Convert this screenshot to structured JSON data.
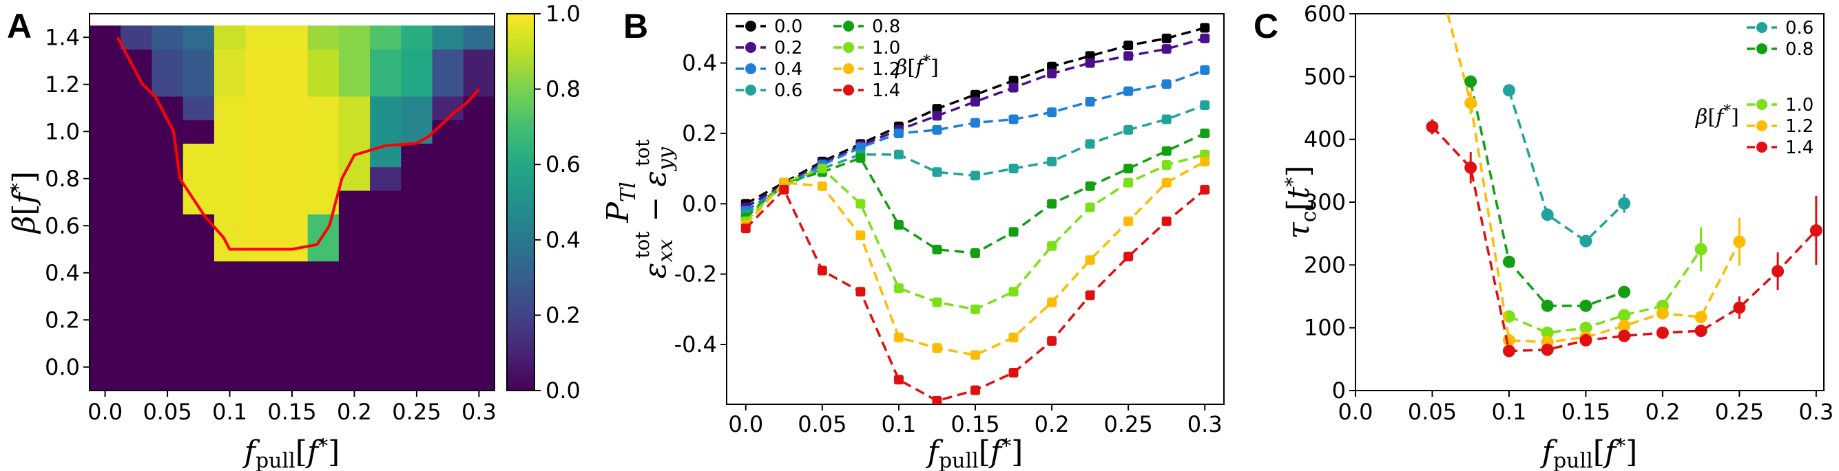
{
  "chart_data": [
    {
      "panel": "A",
      "type": "heatmap",
      "xlabel": "f_pull[f*]",
      "ylabel": "β[f*]",
      "x_ticks": [
        "0.0",
        "0.05",
        "0.1",
        "0.15",
        "0.2",
        "0.25",
        "0.3"
      ],
      "y_ticks": [
        "0.0",
        "0.2",
        "0.4",
        "0.6",
        "0.8",
        "1.0",
        "1.2",
        "1.4"
      ],
      "xlim": [
        -0.0125,
        0.3125
      ],
      "ylim": [
        -0.1,
        1.5
      ],
      "x_centers": [
        0.0,
        0.025,
        0.05,
        0.075,
        0.1,
        0.125,
        0.15,
        0.175,
        0.2,
        0.225,
        0.25,
        0.275,
        0.3
      ],
      "y_centers": [
        0.0,
        0.2,
        0.4,
        0.5,
        0.6,
        0.7,
        0.8,
        0.9,
        1.0,
        1.1,
        1.2,
        1.3,
        1.4
      ],
      "y_edges": [
        -0.1,
        0.1,
        0.3,
        0.45,
        0.55,
        0.65,
        0.75,
        0.85,
        0.95,
        1.05,
        1.15,
        1.25,
        1.35,
        1.45
      ],
      "z": [
        [
          0,
          0,
          0,
          0,
          0,
          0,
          0,
          0,
          0,
          0,
          0,
          0,
          0
        ],
        [
          0,
          0,
          0,
          0,
          0,
          0,
          0,
          0,
          0,
          0,
          0,
          0,
          0
        ],
        [
          0,
          0,
          0,
          0,
          0,
          0,
          0,
          0,
          0,
          0,
          0,
          0,
          0
        ],
        [
          0,
          0,
          0,
          0,
          0.97,
          0.98,
          0.98,
          0.7,
          0,
          0,
          0,
          0,
          0
        ],
        [
          0,
          0,
          0,
          0,
          0.97,
          0.98,
          0.98,
          0.7,
          0,
          0,
          0,
          0,
          0
        ],
        [
          0,
          0,
          0,
          0.97,
          0.97,
          0.98,
          0.98,
          0.97,
          0,
          0,
          0,
          0,
          0
        ],
        [
          0,
          0,
          0,
          0.97,
          0.97,
          0.98,
          0.98,
          0.97,
          0.92,
          0.12,
          0,
          0,
          0
        ],
        [
          0,
          0,
          0,
          0.97,
          0.97,
          0.98,
          0.98,
          0.97,
          0.92,
          0.5,
          0,
          0,
          0
        ],
        [
          0,
          0,
          0,
          0,
          0.97,
          0.98,
          0.98,
          0.97,
          0.92,
          0.5,
          0.45,
          0,
          0
        ],
        [
          0,
          0,
          0,
          0.2,
          0.97,
          0.98,
          0.98,
          0.97,
          0.92,
          0.5,
          0.45,
          0.1,
          0
        ],
        [
          0,
          0,
          0.22,
          0.28,
          0.95,
          0.98,
          0.98,
          0.9,
          0.82,
          0.65,
          0.6,
          0.25,
          0.08
        ],
        [
          0,
          0,
          0.22,
          0.28,
          0.95,
          0.98,
          0.98,
          0.9,
          0.82,
          0.65,
          0.6,
          0.25,
          0.08
        ],
        [
          0,
          0.18,
          0.28,
          0.35,
          0.92,
          0.97,
          0.97,
          0.85,
          0.82,
          0.72,
          0.62,
          0.45,
          0.35
        ]
      ],
      "boundary_curve": {
        "color": "#ff0000",
        "x": [
          0.01,
          0.02,
          0.03,
          0.04,
          0.05,
          0.055,
          0.06,
          0.07,
          0.08,
          0.095,
          0.1,
          0.125,
          0.15,
          0.17,
          0.18,
          0.185,
          0.19,
          0.2,
          0.225,
          0.25,
          0.26,
          0.27,
          0.28,
          0.29,
          0.3
        ],
        "y": [
          1.4,
          1.3,
          1.2,
          1.15,
          1.05,
          1.0,
          0.8,
          0.72,
          0.64,
          0.55,
          0.5,
          0.5,
          0.5,
          0.52,
          0.6,
          0.7,
          0.8,
          0.9,
          0.94,
          0.95,
          0.98,
          1.03,
          1.08,
          1.12,
          1.18
        ]
      },
      "colorbar": {
        "label": "P_Tl",
        "range": [
          0.0,
          1.0
        ],
        "ticks": [
          "0.0",
          "0.2",
          "0.4",
          "0.6",
          "0.8",
          "1.0"
        ],
        "colormap": "viridis"
      }
    },
    {
      "panel": "B",
      "type": "line",
      "xlabel": "f_pull[f*]",
      "ylabel": "ε_xx^tot − ε_yy^tot",
      "xlim": [
        -0.0125,
        0.3125
      ],
      "ylim": [
        -0.57,
        0.54
      ],
      "x_ticks": [
        "0.0",
        "0.05",
        "0.1",
        "0.15",
        "0.2",
        "0.25",
        "0.3"
      ],
      "y_ticks": [
        "-0.4",
        "-0.2",
        "0.0",
        "0.2",
        "0.4"
      ],
      "legend_title": "β[f*]",
      "legend_position": "top-left",
      "x": [
        0.0,
        0.025,
        0.05,
        0.075,
        0.1,
        0.125,
        0.15,
        0.175,
        0.2,
        0.225,
        0.25,
        0.275,
        0.3
      ],
      "series": [
        {
          "name": "0.0",
          "color": "#000000",
          "values": [
            0.0,
            0.06,
            0.12,
            0.17,
            0.22,
            0.27,
            0.31,
            0.35,
            0.39,
            0.42,
            0.45,
            0.47,
            0.5
          ]
        },
        {
          "name": "0.2",
          "color": "#4b0f8c",
          "values": [
            -0.01,
            0.055,
            0.115,
            0.165,
            0.21,
            0.25,
            0.29,
            0.33,
            0.37,
            0.4,
            0.42,
            0.44,
            0.47
          ]
        },
        {
          "name": "0.4",
          "color": "#1f7fd6",
          "values": [
            -0.02,
            0.05,
            0.11,
            0.16,
            0.2,
            0.21,
            0.23,
            0.24,
            0.26,
            0.29,
            0.32,
            0.34,
            0.38
          ]
        },
        {
          "name": "0.6",
          "color": "#1fa39a",
          "values": [
            -0.03,
            0.05,
            0.1,
            0.14,
            0.14,
            0.09,
            0.08,
            0.1,
            0.12,
            0.17,
            0.21,
            0.24,
            0.28
          ]
        },
        {
          "name": "0.8",
          "color": "#12a012",
          "values": [
            -0.04,
            0.06,
            0.09,
            0.13,
            -0.06,
            -0.13,
            -0.14,
            -0.08,
            0.0,
            0.05,
            0.1,
            0.15,
            0.2
          ]
        },
        {
          "name": "1.0",
          "color": "#7be016",
          "values": [
            -0.05,
            0.06,
            0.1,
            0.0,
            -0.24,
            -0.28,
            -0.3,
            -0.25,
            -0.12,
            -0.01,
            0.06,
            0.11,
            0.14
          ]
        },
        {
          "name": "1.2",
          "color": "#ffbb00",
          "values": [
            -0.06,
            0.06,
            0.05,
            -0.09,
            -0.38,
            -0.41,
            -0.43,
            -0.38,
            -0.28,
            -0.16,
            -0.05,
            0.06,
            0.12
          ]
        },
        {
          "name": "1.4",
          "color": "#e01010",
          "values": [
            -0.07,
            0.04,
            -0.19,
            -0.25,
            -0.5,
            -0.56,
            -0.53,
            -0.48,
            -0.39,
            -0.26,
            -0.15,
            -0.05,
            0.04
          ]
        }
      ]
    },
    {
      "panel": "C",
      "type": "line",
      "xlabel": "f_pull[f*]",
      "ylabel": "τ_c[t*]",
      "xlim": [
        0.0,
        0.305
      ],
      "ylim": [
        0,
        600
      ],
      "x_ticks": [
        "0.0",
        "0.05",
        "0.1",
        "0.15",
        "0.2",
        "0.25",
        "0.3"
      ],
      "y_ticks": [
        "0",
        "100",
        "200",
        "300",
        "400",
        "500",
        "600"
      ],
      "legend_title": "β[f*]",
      "legend_position": "top-right",
      "series": [
        {
          "name": "0.6",
          "color": "#1fa39a",
          "x": [
            0.1,
            0.125,
            0.15,
            0.175
          ],
          "values": [
            478,
            280,
            238,
            298
          ],
          "err": [
            0,
            10,
            0,
            15
          ]
        },
        {
          "name": "0.8",
          "color": "#12a012",
          "x": [
            0.075,
            0.1,
            0.125,
            0.15,
            0.175
          ],
          "values": [
            492,
            205,
            135,
            135,
            157
          ],
          "err": [
            0,
            0,
            0,
            0,
            0
          ]
        },
        {
          "name": "1.0",
          "color": "#7be016",
          "x": [
            0.1,
            0.125,
            0.15,
            0.175,
            0.2,
            0.225
          ],
          "values": [
            118,
            92,
            100,
            120,
            135,
            225
          ],
          "err": [
            0,
            0,
            0,
            0,
            0,
            35
          ]
        },
        {
          "name": "1.2",
          "color": "#ffbb00",
          "x": [
            0.075,
            0.1,
            0.125,
            0.15,
            0.175,
            0.2,
            0.225,
            0.25
          ],
          "values": [
            458,
            80,
            77,
            85,
            103,
            123,
            117,
            237
          ],
          "err": [
            18,
            0,
            0,
            0,
            0,
            0,
            0,
            38
          ]
        },
        {
          "name": "1.4",
          "color": "#e01010",
          "x": [
            0.05,
            0.075,
            0.1,
            0.125,
            0.15,
            0.175,
            0.2,
            0.225,
            0.25,
            0.275,
            0.3
          ],
          "values": [
            420,
            355,
            63,
            65,
            80,
            87,
            92,
            95,
            132,
            190,
            255
          ],
          "err": [
            12,
            25,
            0,
            0,
            0,
            0,
            0,
            0,
            18,
            30,
            55
          ]
        }
      ],
      "extra_curve_1.2": {
        "x": [
          0.06,
          0.075
        ],
        "values": [
          600,
          458
        ]
      }
    }
  ]
}
